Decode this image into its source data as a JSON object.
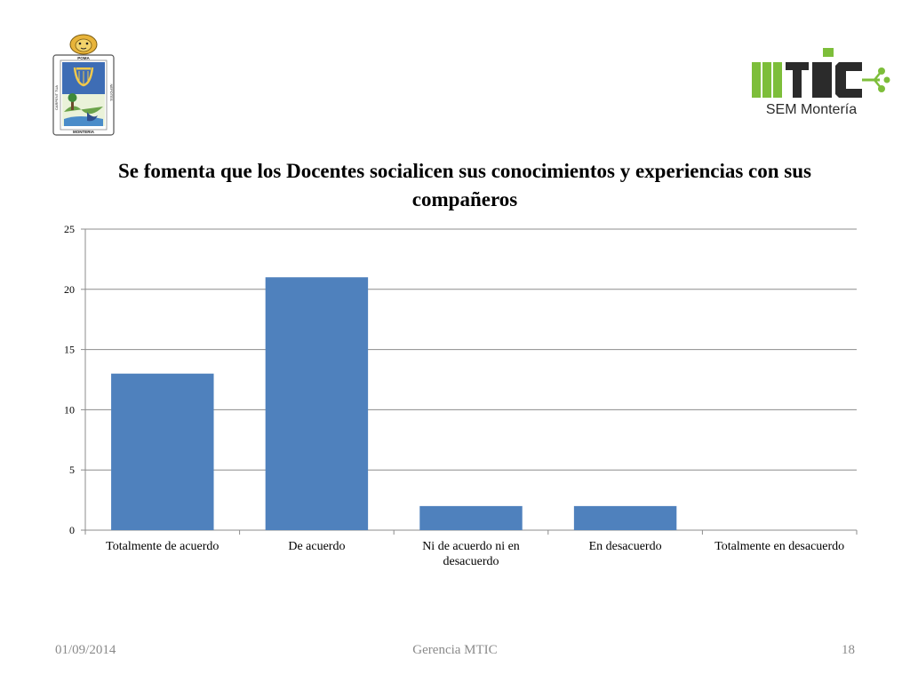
{
  "slide": {
    "footer_date": "01/09/2014",
    "footer_center": "Gerencia MTIC",
    "page_number": "18"
  },
  "logos": {
    "left": {
      "banner": "POMA",
      "left_text": "CARPENT TUA",
      "right_text": "NEPOTES",
      "bottom": "MONTERIA"
    },
    "right": {
      "wordmark": "MTIC",
      "subtitle": "SEM Montería"
    }
  },
  "colors": {
    "bar": "#4F81BD",
    "grid": "#8C8C8C",
    "axis": "#8C8C8C",
    "logo_green": "#7DBE3A",
    "logo_dark": "#2B2B2B",
    "footer_text": "#8A8A8A"
  },
  "chart_data": {
    "type": "bar",
    "title": "Se fomenta que los Docentes  socialicen  sus conocimientos y experiencias con sus compañeros",
    "categories": [
      "Totalmente de acuerdo",
      "De acuerdo",
      "Ni de acuerdo ni en desacuerdo",
      "En desacuerdo",
      "Totalmente en desacuerdo"
    ],
    "series": [
      {
        "values": [
          13,
          21,
          2,
          2,
          0
        ]
      }
    ],
    "xlabel": "",
    "ylabel": "",
    "ylim": [
      0,
      25
    ],
    "yticks": [
      0,
      5,
      10,
      15,
      20,
      25
    ],
    "grid": true,
    "legend": "none"
  }
}
